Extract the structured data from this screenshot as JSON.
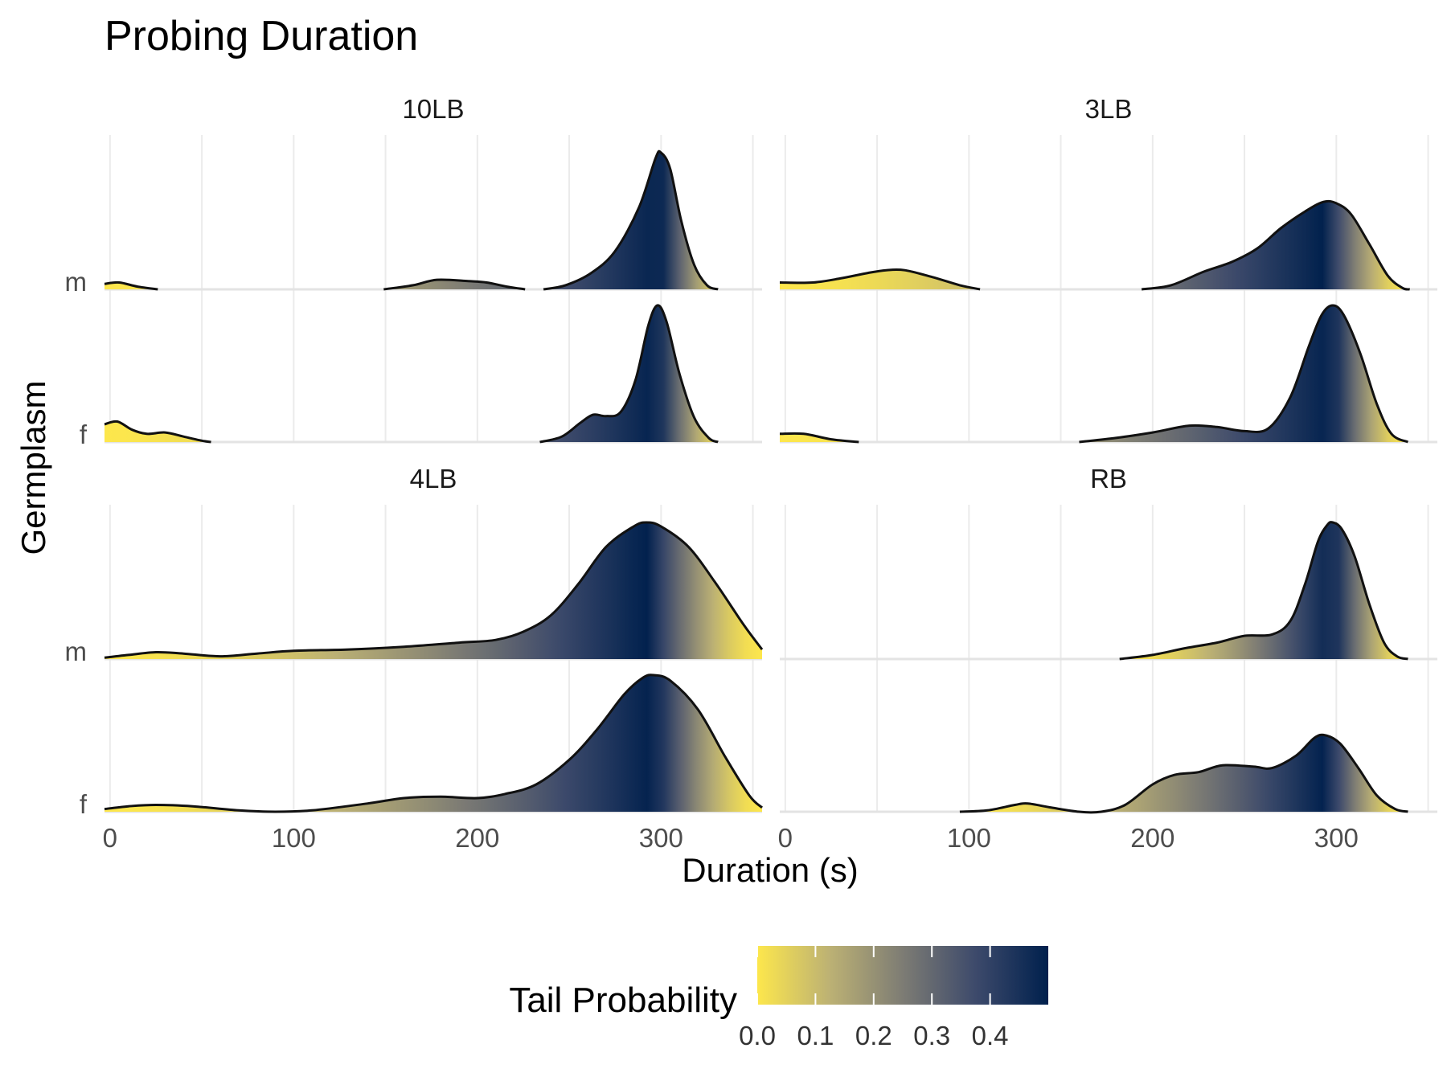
{
  "chart_data": {
    "type": "density-ridgeline",
    "title": "Probing Duration",
    "xlabel": "Duration (s)",
    "ylabel": "Germplasm",
    "xlim": [
      -3,
      355
    ],
    "x_ticks": [
      0,
      100,
      200,
      300
    ],
    "row_labels": [
      "m",
      "f"
    ],
    "color_scale": {
      "title": "Tail Probability",
      "colors": [
        "#fde74c",
        "#bcb174",
        "#7d7c74",
        "#3d4a6b",
        "#00204d"
      ],
      "range": [
        0,
        0.5
      ],
      "ticks": [
        "0.0",
        "0.1",
        "0.2",
        "0.3",
        "0.4"
      ]
    },
    "panels": [
      {
        "label": "10LB",
        "rows": [
          {
            "group": "m",
            "segments": [
              [
                [
                  -3,
                  0.04
                ],
                [
                  5,
                  0.05
                ],
                [
                  15,
                  0.02
                ],
                [
                  26,
                  0.0
                ]
              ],
              [
                [
                  149,
                  0.0
                ],
                [
                  165,
                  0.03
                ],
                [
                  178,
                  0.07
                ],
                [
                  195,
                  0.06
                ],
                [
                  205,
                  0.05
                ],
                [
                  216,
                  0.02
                ],
                [
                  226,
                  0.0
                ]
              ],
              [
                [
                  236,
                  0.0
                ],
                [
                  248,
                  0.03
                ],
                [
                  262,
                  0.12
                ],
                [
                  275,
                  0.28
                ],
                [
                  288,
                  0.6
                ],
                [
                  297,
                  0.96
                ],
                [
                  300,
                  1.0
                ],
                [
                  305,
                  0.88
                ],
                [
                  311,
                  0.5
                ],
                [
                  318,
                  0.18
                ],
                [
                  325,
                  0.03
                ],
                [
                  331,
                  0.0
                ]
              ]
            ]
          },
          {
            "group": "f",
            "segments": [
              [
                [
                  -3,
                  0.13
                ],
                [
                  4,
                  0.15
                ],
                [
                  12,
                  0.09
                ],
                [
                  20,
                  0.06
                ],
                [
                  30,
                  0.07
                ],
                [
                  40,
                  0.04
                ],
                [
                  50,
                  0.01
                ],
                [
                  55,
                  0.0
                ]
              ],
              [
                [
                  234,
                  0.0
                ],
                [
                  246,
                  0.04
                ],
                [
                  256,
                  0.14
                ],
                [
                  263,
                  0.2
                ],
                [
                  270,
                  0.19
                ],
                [
                  278,
                  0.22
                ],
                [
                  286,
                  0.45
                ],
                [
                  293,
                  0.85
                ],
                [
                  298,
                  1.0
                ],
                [
                  303,
                  0.88
                ],
                [
                  310,
                  0.5
                ],
                [
                  318,
                  0.18
                ],
                [
                  326,
                  0.03
                ],
                [
                  331,
                  0.0
                ]
              ]
            ]
          }
        ]
      },
      {
        "label": "3LB",
        "rows": [
          {
            "group": "m",
            "segments": [
              [
                [
                  -3,
                  0.05
                ],
                [
                  15,
                  0.05
                ],
                [
                  30,
                  0.08
                ],
                [
                  45,
                  0.12
                ],
                [
                  55,
                  0.14
                ],
                [
                  65,
                  0.14
                ],
                [
                  80,
                  0.09
                ],
                [
                  95,
                  0.03
                ],
                [
                  106,
                  0.0
                ]
              ],
              [
                [
                  194,
                  0.0
                ],
                [
                  210,
                  0.03
                ],
                [
                  228,
                  0.13
                ],
                [
                  243,
                  0.2
                ],
                [
                  257,
                  0.3
                ],
                [
                  270,
                  0.45
                ],
                [
                  283,
                  0.57
                ],
                [
                  293,
                  0.64
                ],
                [
                  300,
                  0.63
                ],
                [
                  308,
                  0.55
                ],
                [
                  318,
                  0.33
                ],
                [
                  328,
                  0.1
                ],
                [
                  336,
                  0.01
                ],
                [
                  340,
                  0.0
                ]
              ]
            ]
          },
          {
            "group": "f",
            "segments": [
              [
                [
                  -3,
                  0.06
                ],
                [
                  10,
                  0.06
                ],
                [
                  25,
                  0.02
                ],
                [
                  40,
                  0.0
                ]
              ],
              [
                [
                  160,
                  0.0
                ],
                [
                  180,
                  0.03
                ],
                [
                  200,
                  0.07
                ],
                [
                  220,
                  0.12
                ],
                [
                  235,
                  0.11
                ],
                [
                  250,
                  0.08
                ],
                [
                  263,
                  0.1
                ],
                [
                  275,
                  0.33
                ],
                [
                  285,
                  0.7
                ],
                [
                  292,
                  0.93
                ],
                [
                  298,
                  1.0
                ],
                [
                  304,
                  0.93
                ],
                [
                  313,
                  0.65
                ],
                [
                  322,
                  0.28
                ],
                [
                  330,
                  0.06
                ],
                [
                  339,
                  0.0
                ]
              ]
            ]
          }
        ]
      },
      {
        "label": "4LB",
        "rows": [
          {
            "group": "m",
            "segments": [
              [
                [
                  -3,
                  0.01
                ],
                [
                  10,
                  0.03
                ],
                [
                  25,
                  0.05
                ],
                [
                  40,
                  0.04
                ],
                [
                  60,
                  0.02
                ],
                [
                  80,
                  0.04
                ],
                [
                  100,
                  0.06
                ],
                [
                  130,
                  0.07
                ],
                [
                  160,
                  0.09
                ],
                [
                  190,
                  0.12
                ],
                [
                  210,
                  0.14
                ],
                [
                  225,
                  0.2
                ],
                [
                  240,
                  0.32
                ],
                [
                  255,
                  0.55
                ],
                [
                  270,
                  0.82
                ],
                [
                  285,
                  0.97
                ],
                [
                  292,
                  1.0
                ],
                [
                  300,
                  0.97
                ],
                [
                  315,
                  0.82
                ],
                [
                  330,
                  0.55
                ],
                [
                  345,
                  0.25
                ],
                [
                  355,
                  0.07
                ]
              ]
            ]
          },
          {
            "group": "f",
            "segments": [
              [
                [
                  -3,
                  0.02
                ],
                [
                  10,
                  0.04
                ],
                [
                  25,
                  0.05
                ],
                [
                  45,
                  0.04
                ],
                [
                  70,
                  0.01
                ],
                [
                  90,
                  0.0
                ],
                [
                  110,
                  0.01
                ],
                [
                  140,
                  0.06
                ],
                [
                  160,
                  0.1
                ],
                [
                  180,
                  0.11
                ],
                [
                  200,
                  0.1
                ],
                [
                  215,
                  0.13
                ],
                [
                  232,
                  0.2
                ],
                [
                  250,
                  0.38
                ],
                [
                  265,
                  0.6
                ],
                [
                  280,
                  0.86
                ],
                [
                  290,
                  0.98
                ],
                [
                  296,
                  1.0
                ],
                [
                  305,
                  0.96
                ],
                [
                  320,
                  0.75
                ],
                [
                  335,
                  0.4
                ],
                [
                  348,
                  0.12
                ],
                [
                  355,
                  0.03
                ]
              ]
            ]
          }
        ]
      },
      {
        "label": "RB",
        "rows": [
          {
            "group": "m",
            "segments": [
              [
                [
                  182,
                  0.0
                ],
                [
                  200,
                  0.03
                ],
                [
                  218,
                  0.08
                ],
                [
                  235,
                  0.12
                ],
                [
                  250,
                  0.17
                ],
                [
                  265,
                  0.18
                ],
                [
                  275,
                  0.28
                ],
                [
                  283,
                  0.55
                ],
                [
                  290,
                  0.86
                ],
                [
                  295,
                  0.98
                ],
                [
                  298,
                  1.0
                ],
                [
                  303,
                  0.95
                ],
                [
                  310,
                  0.75
                ],
                [
                  318,
                  0.4
                ],
                [
                  326,
                  0.12
                ],
                [
                  333,
                  0.02
                ],
                [
                  339,
                  0.0
                ]
              ]
            ]
          },
          {
            "group": "f",
            "segments": [
              [
                [
                  95,
                  0.0
                ],
                [
                  110,
                  0.01
                ],
                [
                  125,
                  0.05
                ],
                [
                  132,
                  0.06
                ],
                [
                  145,
                  0.03
                ],
                [
                  160,
                  0.0
                ],
                [
                  172,
                  0.0
                ],
                [
                  185,
                  0.05
                ],
                [
                  200,
                  0.2
                ],
                [
                  212,
                  0.27
                ],
                [
                  225,
                  0.29
                ],
                [
                  238,
                  0.34
                ],
                [
                  255,
                  0.33
                ],
                [
                  265,
                  0.32
                ],
                [
                  278,
                  0.41
                ],
                [
                  288,
                  0.54
                ],
                [
                  294,
                  0.56
                ],
                [
                  302,
                  0.5
                ],
                [
                  312,
                  0.32
                ],
                [
                  322,
                  0.12
                ],
                [
                  332,
                  0.02
                ],
                [
                  339,
                  0.0
                ]
              ]
            ]
          }
        ]
      }
    ]
  }
}
